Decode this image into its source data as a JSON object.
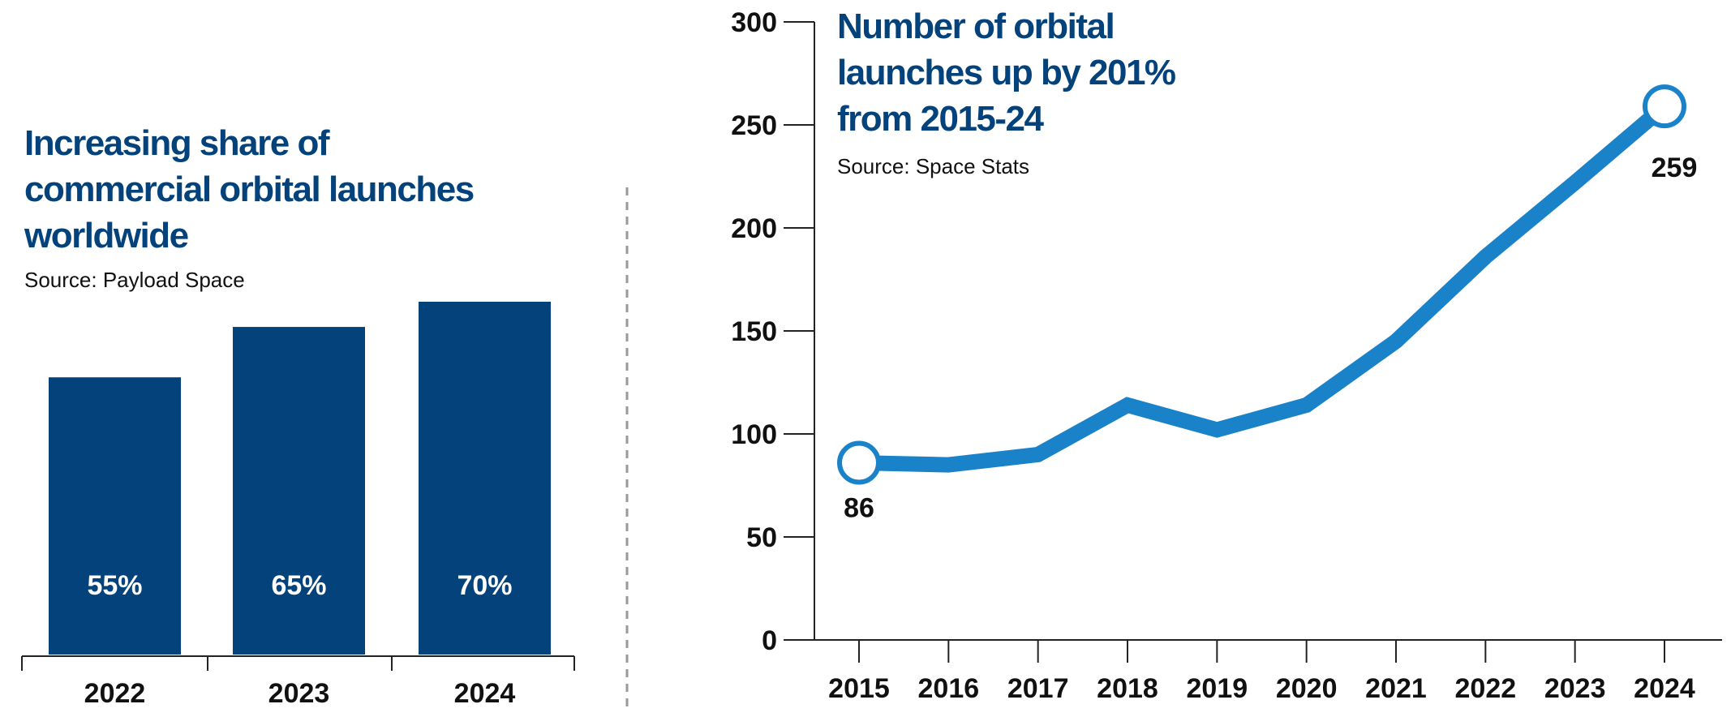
{
  "chart_data": [
    {
      "type": "bar",
      "title": "Increasing share of commercial orbital launches worldwide",
      "source": "Source: Payload Space",
      "categories": [
        "2022",
        "2023",
        "2024"
      ],
      "values": [
        55,
        65,
        70
      ],
      "value_labels": [
        "55%",
        "65%",
        "70%"
      ],
      "unit": "%",
      "color": "#03427a"
    },
    {
      "type": "line",
      "title_lines": [
        "Number of orbital",
        "launches up by 201%",
        "from 2015-24"
      ],
      "source": "Source: Space Stats",
      "x": [
        "2015",
        "2016",
        "2017",
        "2018",
        "2019",
        "2020",
        "2021",
        "2022",
        "2023",
        "2024"
      ],
      "y": [
        86,
        85,
        90,
        114,
        102,
        114,
        145,
        186,
        222,
        259
      ],
      "ylim": [
        0,
        300
      ],
      "yticks": [
        "0",
        "50",
        "100",
        "150",
        "200",
        "250",
        "300"
      ],
      "annotations": [
        {
          "x": "2015",
          "label": "86"
        },
        {
          "x": "2024",
          "label": "259"
        }
      ],
      "color": "#1a82c8",
      "grid": false
    }
  ],
  "left_title_lines": [
    "Increasing share of",
    "commercial orbital launches",
    "worldwide"
  ]
}
